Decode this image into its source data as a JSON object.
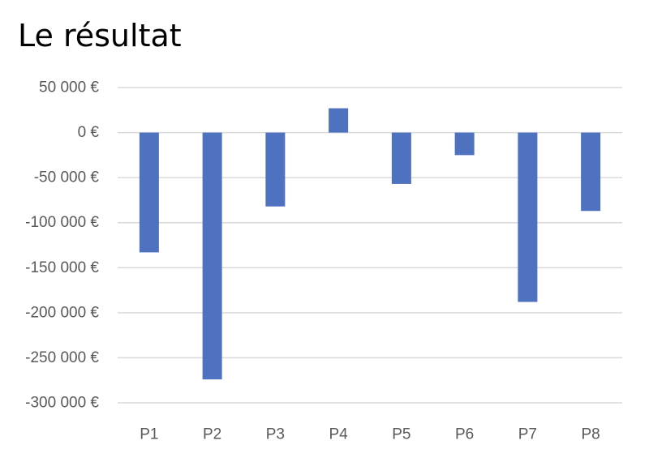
{
  "chart_data": {
    "type": "bar",
    "title": "Le résultat",
    "xlabel": "",
    "ylabel": "",
    "categories": [
      "P1",
      "P2",
      "P3",
      "P4",
      "P5",
      "P6",
      "P7",
      "P8"
    ],
    "values": [
      -133000,
      -274000,
      -82000,
      27000,
      -57000,
      -25000,
      -188000,
      -87000
    ],
    "ylim": [
      -300000,
      50000
    ],
    "yticks": [
      50000,
      0,
      -50000,
      -100000,
      -150000,
      -200000,
      -250000,
      -300000
    ],
    "ytick_labels": [
      "50 000 €",
      "0 €",
      "-50 000 €",
      "-100 000 €",
      "-150 000 €",
      "-200 000 €",
      "-250 000 €",
      "-300 000 €"
    ],
    "grid": true,
    "legend": "none",
    "bar_color": "#4F72C0",
    "grid_color": "#D9D9D9",
    "tick_color": "#595959"
  }
}
